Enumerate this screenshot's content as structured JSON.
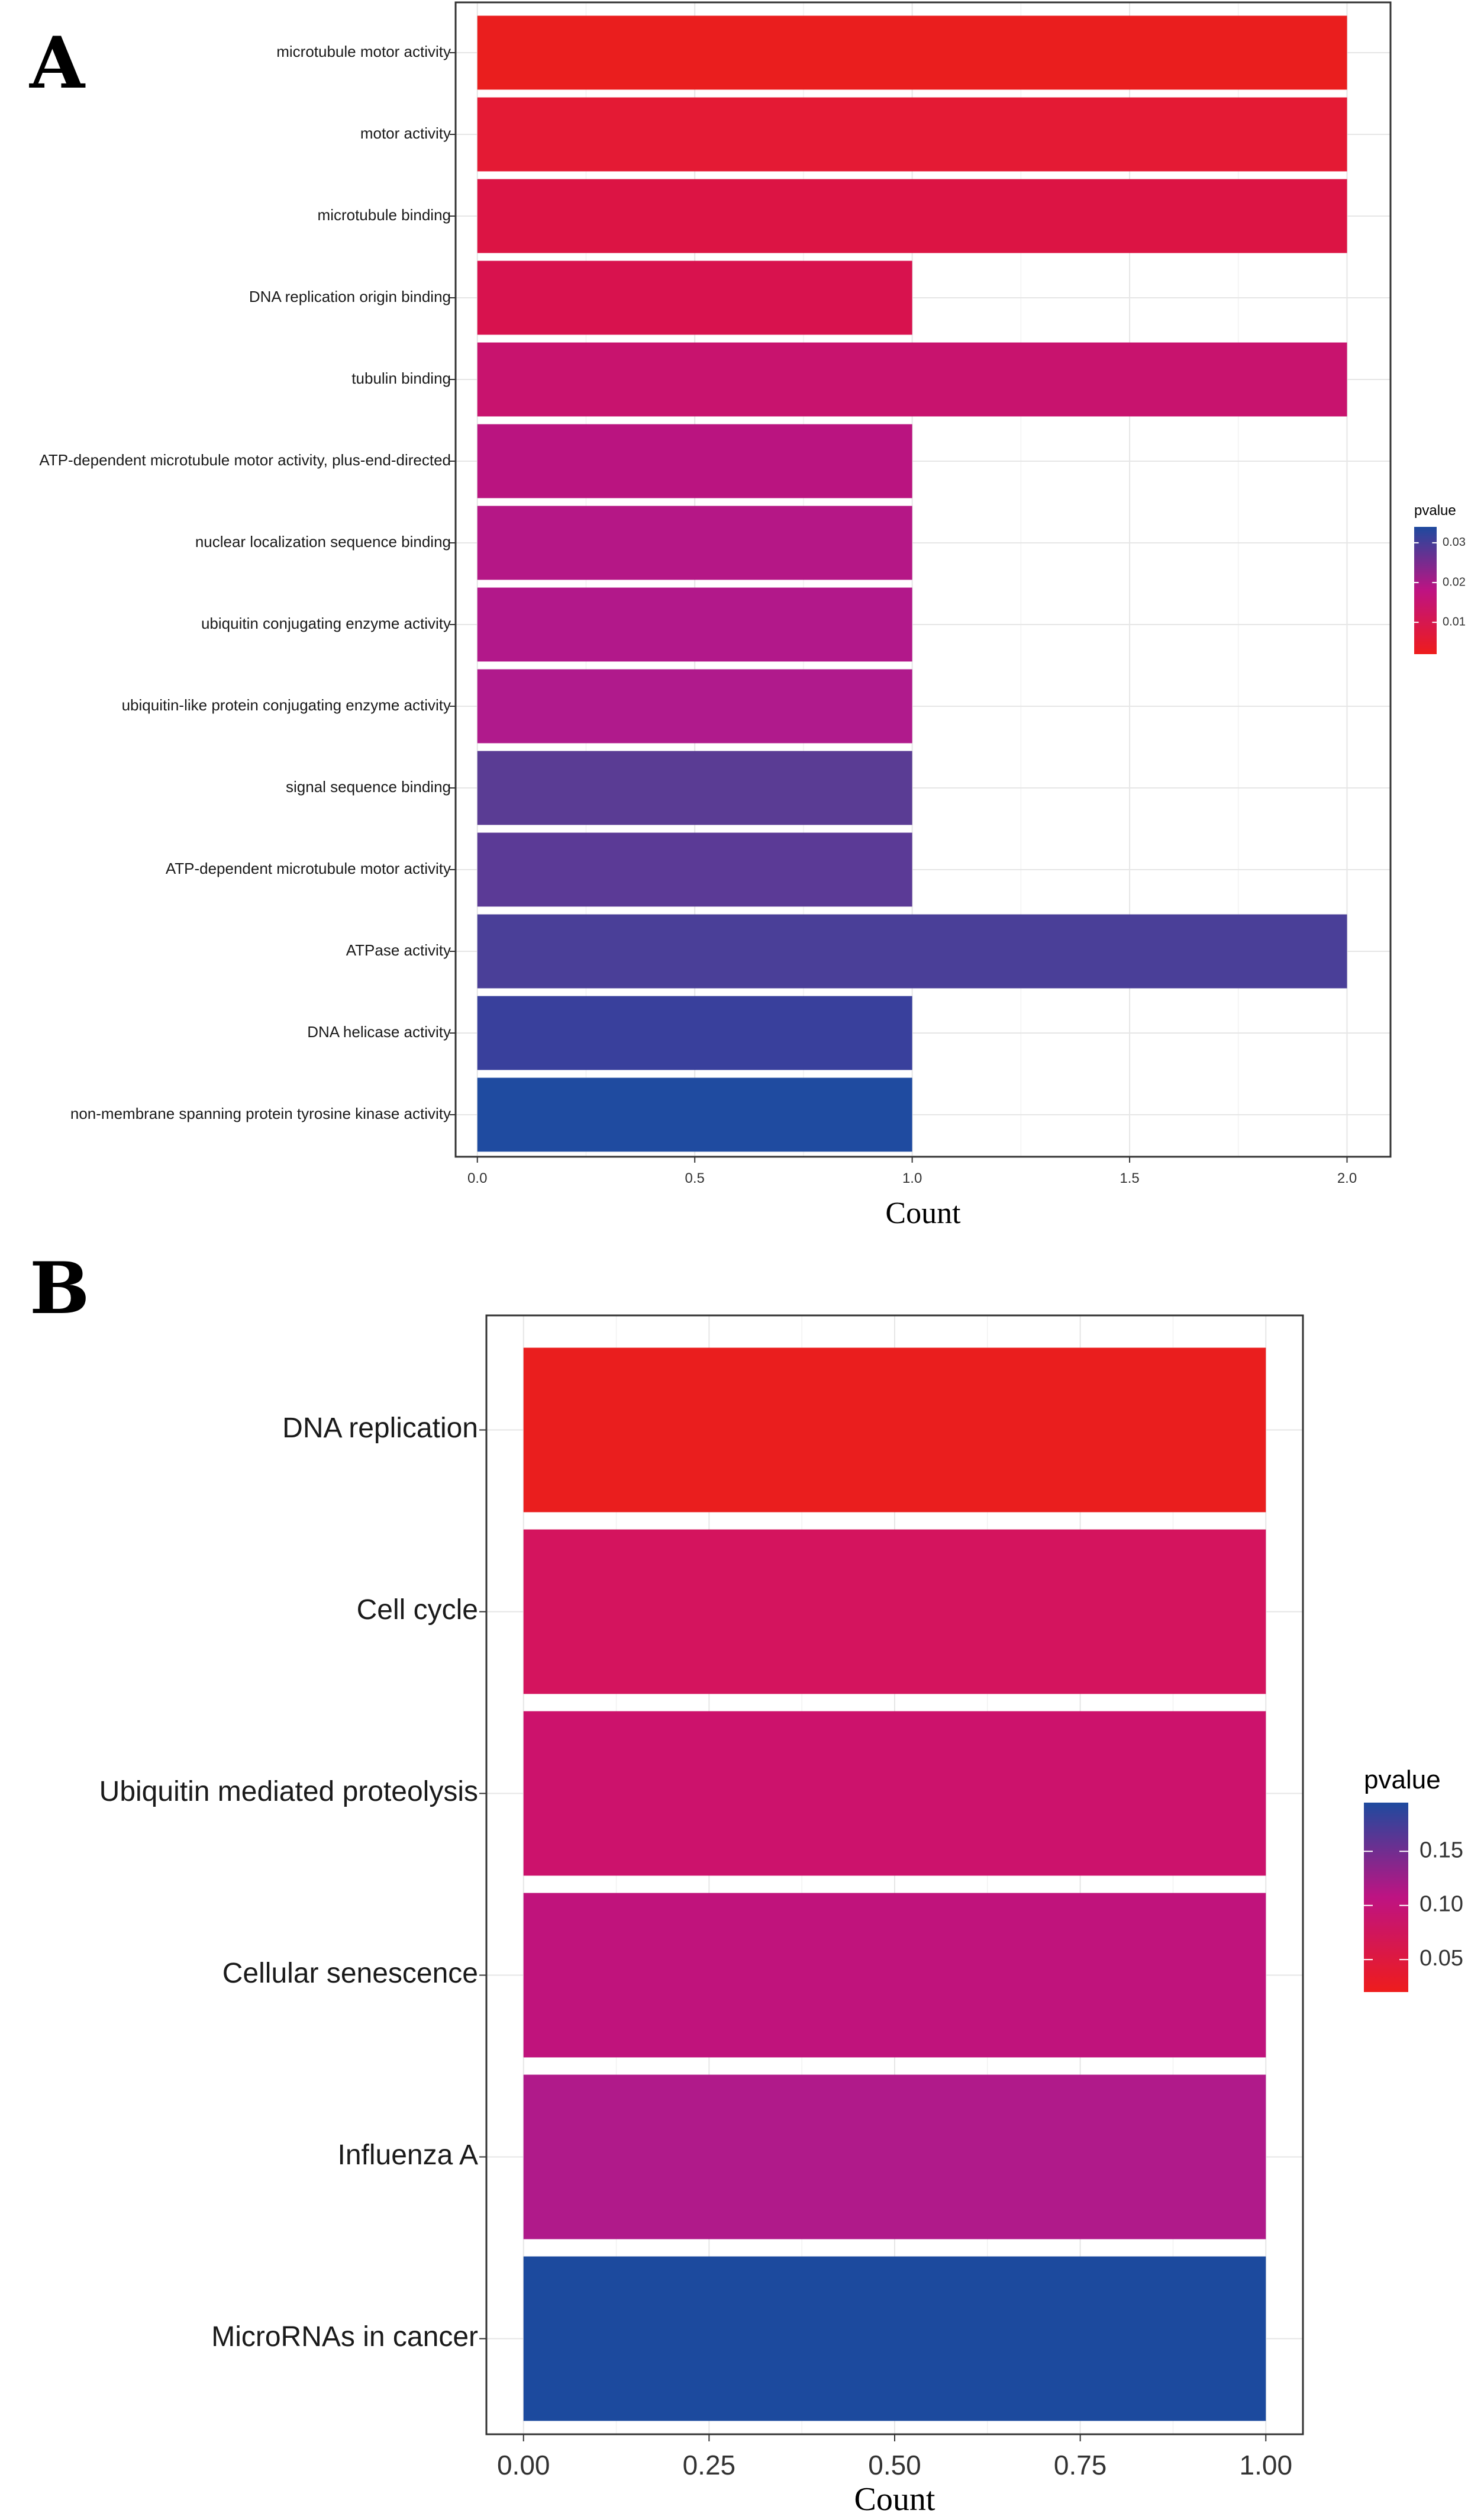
{
  "chart_data": [
    {
      "panel": "A",
      "type": "bar",
      "orientation": "horizontal",
      "xlabel": "Count",
      "xlim": [
        -0.05,
        2.1
      ],
      "xticks": [
        0.0,
        0.5,
        1.0,
        1.5,
        2.0
      ],
      "xtick_labels": [
        "0.0",
        "0.5",
        "1.0",
        "1.5",
        "2.0"
      ],
      "grid": true,
      "legend": {
        "title": "pvalue",
        "placement": "right",
        "range": [
          0.002,
          0.034
        ],
        "ticks": [
          0.01,
          0.02,
          0.03
        ],
        "tick_labels": [
          "0.01",
          "0.02",
          "0.03"
        ],
        "color_low": "#EE1C1C",
        "color_high": "#1E4A9E"
      },
      "categories": [
        "microtubule motor activity",
        "motor activity",
        "microtubule binding",
        "DNA replication origin binding",
        "tubulin binding",
        "ATP-dependent microtubule motor activity, plus-end-directed",
        "nuclear localization sequence binding",
        "ubiquitin conjugating enzyme activity",
        "ubiquitin-like protein conjugating enzyme activity",
        "signal sequence binding",
        "ATP-dependent microtubule motor activity",
        "ATPase activity",
        "DNA helicase activity",
        "non-membrane spanning protein tyrosine kinase activity"
      ],
      "values": [
        2,
        2,
        2,
        1,
        2,
        1,
        1,
        1,
        1,
        1,
        1,
        2,
        1,
        1
      ],
      "colors": [
        "#EA1E1E",
        "#E41A34",
        "#DC1444",
        "#D8124E",
        "#C8136E",
        "#BA1480",
        "#B51786",
        "#B2188A",
        "#B01A8C",
        "#5A3C94",
        "#5B3A96",
        "#4A3F98",
        "#39409C",
        "#1F4BA0"
      ]
    },
    {
      "panel": "B",
      "type": "bar",
      "orientation": "horizontal",
      "xlabel": "Count",
      "xlim": [
        -0.05,
        1.05
      ],
      "xticks": [
        0.0,
        0.25,
        0.5,
        0.75,
        1.0
      ],
      "xtick_labels": [
        "0.00",
        "0.25",
        "0.50",
        "0.75",
        "1.00"
      ],
      "grid": true,
      "legend": {
        "title": "pvalue",
        "placement": "right",
        "range": [
          0.02,
          0.195
        ],
        "ticks": [
          0.05,
          0.1,
          0.15
        ],
        "tick_labels": [
          "0.05",
          "0.10",
          "0.15"
        ],
        "color_low": "#EE1C1C",
        "color_high": "#1E4A9E"
      },
      "categories": [
        "DNA replication",
        "Cell cycle",
        "Ubiquitin mediated proteolysis",
        "Cellular senescence",
        "Influenza A",
        "MicroRNAs in cancer"
      ],
      "values": [
        1,
        1,
        1,
        1,
        1,
        1
      ],
      "colors": [
        "#EA1E1E",
        "#D4145E",
        "#CC126C",
        "#C0137C",
        "#B01A8A",
        "#1C4A9E"
      ]
    }
  ],
  "panel_labels": [
    "A",
    "B"
  ]
}
